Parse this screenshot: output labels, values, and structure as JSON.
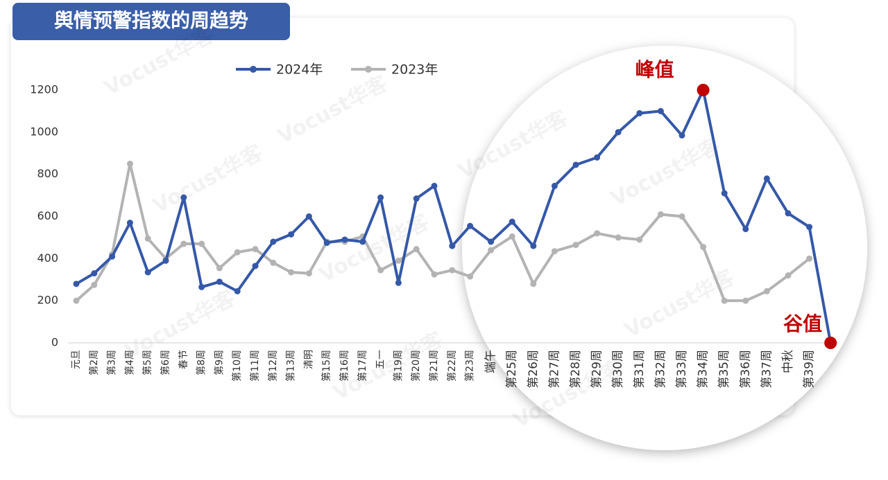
{
  "chart_data": {
    "type": "line",
    "title": "舆情预警指数的周趋势",
    "watermark": "Vocust华客",
    "annotations": [
      "峰值",
      "谷值"
    ],
    "categories": [
      "元旦",
      "第2周",
      "第3周",
      "第4周",
      "第5周",
      "第6周",
      "春节",
      "第8周",
      "第9周",
      "第10周",
      "第11周",
      "第12周",
      "第13周",
      "清明",
      "第15周",
      "第16周",
      "第17周",
      "五一",
      "第19周",
      "第20周",
      "第21周",
      "第22周",
      "第23周",
      "端午",
      "第25周",
      "第26周",
      "第27周",
      "第28周",
      "第29周",
      "第30周",
      "第31周",
      "第32周",
      "第33周",
      "第34周",
      "第35周",
      "第36周",
      "第37周",
      "中秋",
      "第39周",
      null
    ],
    "series": [
      {
        "name": "2024年",
        "color": "#3558a8",
        "values": [
          280,
          330,
          410,
          570,
          335,
          390,
          690,
          265,
          290,
          245,
          365,
          480,
          515,
          600,
          475,
          490,
          480,
          690,
          285,
          685,
          745,
          460,
          555,
          480,
          575,
          460,
          745,
          845,
          880,
          1000,
          1090,
          1100,
          985,
          1200,
          710,
          540,
          780,
          615,
          550,
          0
        ]
      },
      {
        "name": "2023年",
        "color": "#b3b3b3",
        "values": [
          200,
          275,
          420,
          850,
          495,
          400,
          470,
          470,
          355,
          430,
          445,
          380,
          335,
          330,
          480,
          480,
          505,
          345,
          390,
          445,
          325,
          345,
          315,
          440,
          505,
          280,
          435,
          465,
          520,
          500,
          490,
          610,
          600,
          455,
          200,
          200,
          245,
          320,
          400,
          null
        ]
      }
    ],
    "highlight_color": "#c00000",
    "ylim": [
      0,
      1200
    ],
    "yticks": [
      0,
      200,
      400,
      600,
      800,
      1000,
      1200
    ],
    "grid": false,
    "legend": "top"
  }
}
